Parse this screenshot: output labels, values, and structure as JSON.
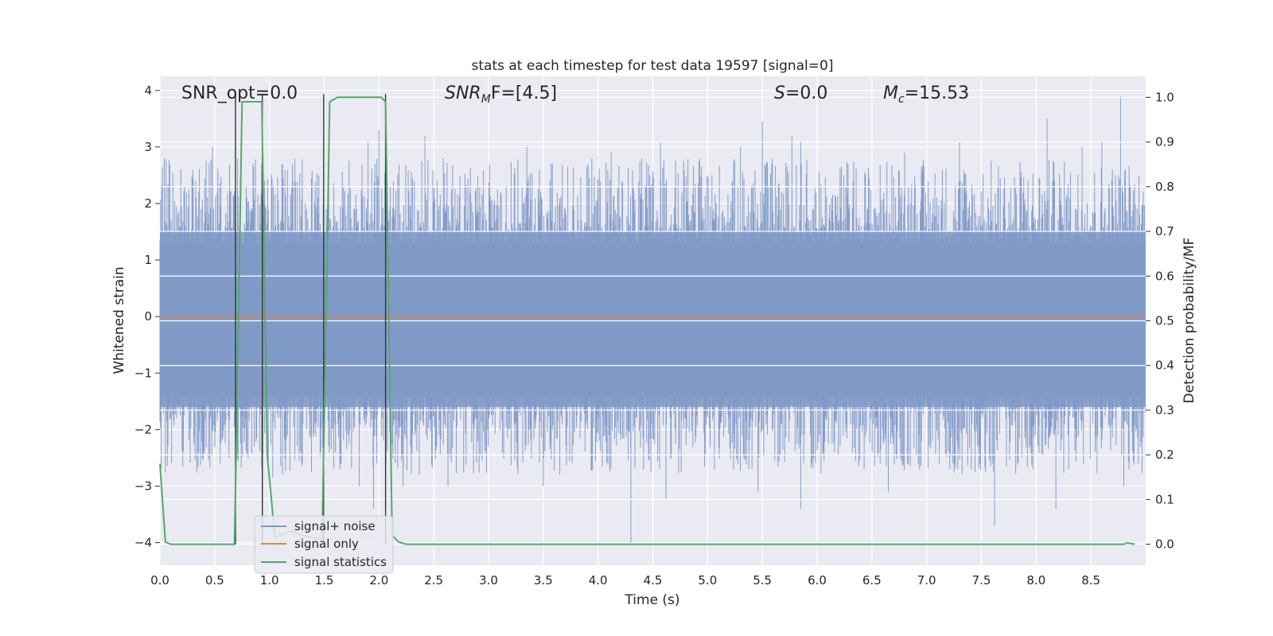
{
  "chart_data": {
    "type": "line",
    "title": "stats at each timestep for test data 19597 [signal=0]",
    "xlabel": "Time (s)",
    "ylabel": "Whitened strain",
    "y2label": "Detection probability/MF",
    "xlim": [
      0.0,
      9.0
    ],
    "ylim": [
      -4.4,
      4.25
    ],
    "y2lim": [
      -0.047,
      1.047
    ],
    "x_ticks": [
      "0.0",
      "0.5",
      "1.0",
      "1.5",
      "2.0",
      "2.5",
      "3.0",
      "3.5",
      "4.0",
      "4.5",
      "5.0",
      "5.5",
      "6.0",
      "6.5",
      "7.0",
      "7.5",
      "8.0",
      "8.5"
    ],
    "y_ticks": [
      "4",
      "3",
      "2",
      "1",
      "0",
      "−1",
      "−2",
      "−3",
      "−4"
    ],
    "y2_ticks": [
      "1.0",
      "0.9",
      "0.8",
      "0.7",
      "0.6",
      "0.5",
      "0.4",
      "0.3",
      "0.2",
      "0.1",
      "0.0"
    ],
    "grid": true,
    "legend_position": "lower-left",
    "annotations": {
      "snr_opt": "SNR_opt=0.0",
      "snr_mf_base": "SNR",
      "snr_mf_sub": "M",
      "snr_mf_rest": "F=[4.5]",
      "s_label": "S",
      "s_value": "=0.0",
      "mc_base": "M",
      "mc_sub": "c",
      "mc_value": "=15.53"
    },
    "series": [
      {
        "name": "signal+ noise",
        "color": "#7f99c7",
        "axis": "left",
        "description_kind": "noise",
        "envelope_hi": 1.5,
        "envelope_lo": -1.6,
        "peaks": [
          {
            "x": 0.04,
            "y": 2.8
          },
          {
            "x": 0.05,
            "y": -2.75
          },
          {
            "x": 0.3,
            "y": 2.6
          },
          {
            "x": 0.48,
            "y": 3.0
          },
          {
            "x": 0.55,
            "y": -2.6
          },
          {
            "x": 0.85,
            "y": 2.7
          },
          {
            "x": 1.03,
            "y": -2.85
          },
          {
            "x": 1.3,
            "y": -2.6
          },
          {
            "x": 1.82,
            "y": -3.0
          },
          {
            "x": 1.9,
            "y": 3.1
          },
          {
            "x": 1.95,
            "y": -3.4
          },
          {
            "x": 2.0,
            "y": 3.3
          },
          {
            "x": 2.22,
            "y": -3.0
          },
          {
            "x": 2.42,
            "y": 3.2
          },
          {
            "x": 2.63,
            "y": -3.0
          },
          {
            "x": 3.35,
            "y": 3.0
          },
          {
            "x": 3.5,
            "y": -3.0
          },
          {
            "x": 4.12,
            "y": 2.9
          },
          {
            "x": 4.3,
            "y": -4.0
          },
          {
            "x": 4.57,
            "y": 3.1
          },
          {
            "x": 4.62,
            "y": -3.25
          },
          {
            "x": 5.3,
            "y": 3.0
          },
          {
            "x": 5.5,
            "y": 3.45
          },
          {
            "x": 5.46,
            "y": -3.1
          },
          {
            "x": 5.77,
            "y": 3.2
          },
          {
            "x": 5.85,
            "y": -3.4
          },
          {
            "x": 5.85,
            "y": 3.1
          },
          {
            "x": 6.65,
            "y": -3.1
          },
          {
            "x": 6.8,
            "y": 2.9
          },
          {
            "x": 7.3,
            "y": 3.1
          },
          {
            "x": 7.62,
            "y": -3.7
          },
          {
            "x": 8.1,
            "y": 3.5
          },
          {
            "x": 8.18,
            "y": -3.4
          },
          {
            "x": 8.42,
            "y": 3.0
          },
          {
            "x": 8.6,
            "y": 3.1
          },
          {
            "x": 8.77,
            "y": 3.9
          },
          {
            "x": 8.8,
            "y": -3.0
          }
        ]
      },
      {
        "name": "signal only",
        "color": "#dd8452",
        "axis": "left",
        "x": [
          0.0,
          9.0
        ],
        "y": [
          0.0,
          0.0
        ]
      },
      {
        "name": "signal statistics",
        "color": "#55a868",
        "axis": "right",
        "x": [
          0.0,
          0.05,
          0.1,
          0.2,
          0.5,
          0.68,
          0.7,
          0.75,
          0.82,
          0.93,
          0.98,
          1.05,
          1.1,
          1.2,
          1.3,
          1.48,
          1.52,
          1.55,
          1.62,
          2.02,
          2.06,
          2.12,
          2.18,
          2.25,
          8.7,
          8.8,
          8.83,
          8.9
        ],
        "y": [
          0.18,
          0.005,
          0.0,
          0.0,
          0.0,
          0.0,
          0.25,
          0.99,
          0.99,
          0.99,
          0.2,
          0.015,
          0.02,
          0.03,
          0.02,
          0.01,
          0.55,
          0.99,
          1.0,
          1.0,
          0.99,
          0.02,
          0.005,
          0.0,
          0.0,
          0.0,
          0.003,
          0.0
        ]
      }
    ],
    "vertical_markers": [
      0.69,
      0.935,
      1.495,
      2.06
    ]
  },
  "colors": {
    "plot_bg": "#eaeaf2",
    "grid": "#ffffff",
    "marker_line": "#333333"
  }
}
